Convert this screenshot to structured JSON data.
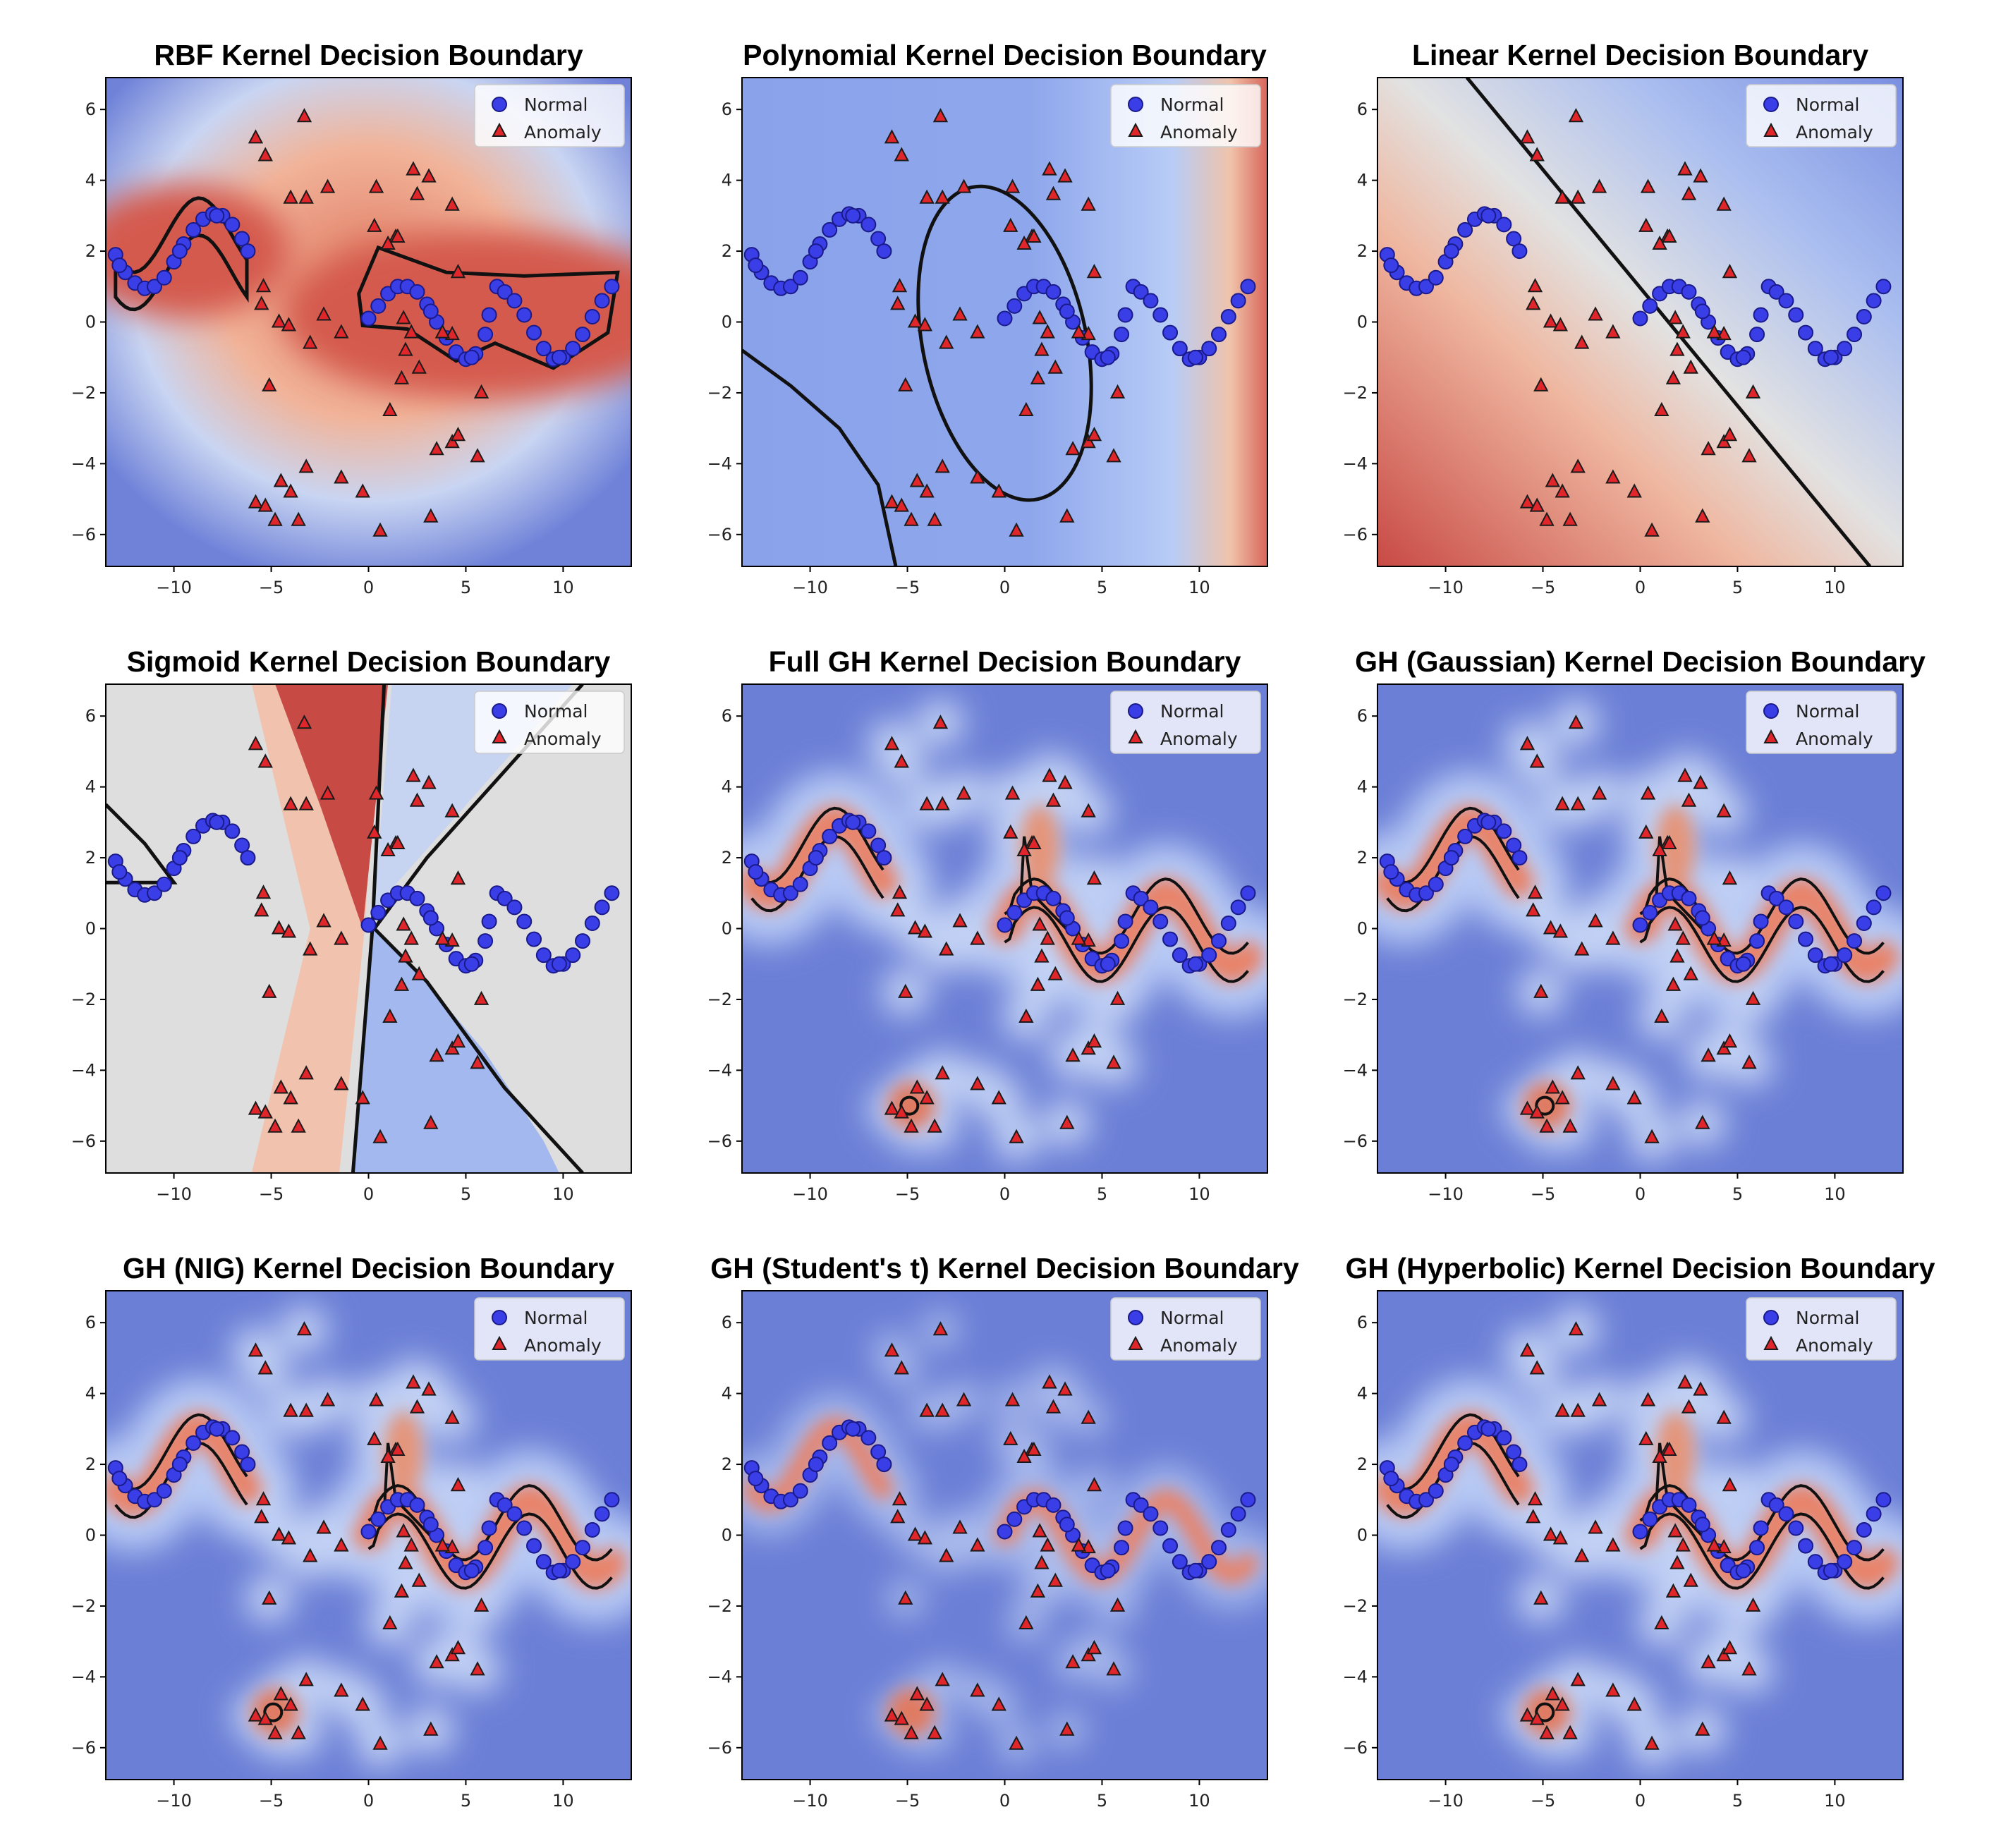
{
  "figure": {
    "legend_labels": {
      "normal": "Normal",
      "anomaly": "Anomaly"
    },
    "colors": {
      "normal_fill": "#3a3ee6",
      "normal_edge": "#1a1a8a",
      "anomaly_fill": "#e0262b",
      "anomaly_edge": "#1a1a1a",
      "boundary": "#111111",
      "score_low": "#5b6fd0",
      "score_mid": "#dcdcdc",
      "score_high": "#c3383a"
    }
  },
  "chart_data": [
    {
      "type": "scatter",
      "title": "RBF Kernel Decision Boundary",
      "xlim": [
        -13.5,
        13.5
      ],
      "ylim": [
        -6.9,
        6.9
      ],
      "xticks": [
        -10,
        -5,
        0,
        5,
        10
      ],
      "yticks": [
        -6,
        -4,
        -2,
        0,
        2,
        4,
        6
      ],
      "xtick_labels": [
        "−10",
        "−5",
        "0",
        "5",
        "10"
      ],
      "ytick_labels": [
        "−6",
        "−4",
        "−2",
        "0",
        "2",
        "4",
        "6"
      ],
      "legend": [
        "Normal",
        "Anomaly"
      ],
      "legend_position": "top-right",
      "kernel": "rbf"
    },
    {
      "type": "scatter",
      "title": "Polynomial Kernel Decision Boundary",
      "xlim": [
        -13.5,
        13.5
      ],
      "ylim": [
        -6.9,
        6.9
      ],
      "xticks": [
        -10,
        -5,
        0,
        5,
        10
      ],
      "yticks": [
        -6,
        -4,
        -2,
        0,
        2,
        4,
        6
      ],
      "xtick_labels": [
        "−10",
        "−5",
        "0",
        "5",
        "10"
      ],
      "ytick_labels": [
        "−6",
        "−4",
        "−2",
        "0",
        "2",
        "4",
        "6"
      ],
      "legend": [
        "Normal",
        "Anomaly"
      ],
      "legend_position": "top-right",
      "kernel": "poly"
    },
    {
      "type": "scatter",
      "title": "Linear Kernel Decision Boundary",
      "xlim": [
        -13.5,
        13.5
      ],
      "ylim": [
        -6.9,
        6.9
      ],
      "xticks": [
        -10,
        -5,
        0,
        5,
        10
      ],
      "yticks": [
        -6,
        -4,
        -2,
        0,
        2,
        4,
        6
      ],
      "xtick_labels": [
        "−10",
        "−5",
        "0",
        "5",
        "10"
      ],
      "ytick_labels": [
        "−6",
        "−4",
        "−2",
        "0",
        "2",
        "4",
        "6"
      ],
      "legend": [
        "Normal",
        "Anomaly"
      ],
      "legend_position": "top-right",
      "kernel": "linear"
    },
    {
      "type": "scatter",
      "title": "Sigmoid Kernel Decision Boundary",
      "xlim": [
        -13.5,
        13.5
      ],
      "ylim": [
        -6.9,
        6.9
      ],
      "xticks": [
        -10,
        -5,
        0,
        5,
        10
      ],
      "yticks": [
        -6,
        -4,
        -2,
        0,
        2,
        4,
        6
      ],
      "xtick_labels": [
        "−10",
        "−5",
        "0",
        "5",
        "10"
      ],
      "ytick_labels": [
        "−6",
        "−4",
        "−2",
        "0",
        "2",
        "4",
        "6"
      ],
      "legend": [
        "Normal",
        "Anomaly"
      ],
      "legend_position": "top-right",
      "kernel": "sigmoid"
    },
    {
      "type": "scatter",
      "title": "Full GH Kernel Decision Boundary",
      "xlim": [
        -13.5,
        13.5
      ],
      "ylim": [
        -6.9,
        6.9
      ],
      "xticks": [
        -10,
        -5,
        0,
        5,
        10
      ],
      "yticks": [
        -6,
        -4,
        -2,
        0,
        2,
        4,
        6
      ],
      "xtick_labels": [
        "−10",
        "−5",
        "0",
        "5",
        "10"
      ],
      "ytick_labels": [
        "−6",
        "−4",
        "−2",
        "0",
        "2",
        "4",
        "6"
      ],
      "legend": [
        "Normal",
        "Anomaly"
      ],
      "legend_position": "top-right",
      "kernel": "gh"
    },
    {
      "type": "scatter",
      "title": "GH (Gaussian) Kernel Decision Boundary",
      "xlim": [
        -13.5,
        13.5
      ],
      "ylim": [
        -6.9,
        6.9
      ],
      "xticks": [
        -10,
        -5,
        0,
        5,
        10
      ],
      "yticks": [
        -6,
        -4,
        -2,
        0,
        2,
        4,
        6
      ],
      "xtick_labels": [
        "−10",
        "−5",
        "0",
        "5",
        "10"
      ],
      "ytick_labels": [
        "−6",
        "−4",
        "−2",
        "0",
        "2",
        "4",
        "6"
      ],
      "legend": [
        "Normal",
        "Anomaly"
      ],
      "legend_position": "top-right",
      "kernel": "gh"
    },
    {
      "type": "scatter",
      "title": "GH (NIG) Kernel Decision Boundary",
      "xlim": [
        -13.5,
        13.5
      ],
      "ylim": [
        -6.9,
        6.9
      ],
      "xticks": [
        -10,
        -5,
        0,
        5,
        10
      ],
      "yticks": [
        -6,
        -4,
        -2,
        0,
        2,
        4,
        6
      ],
      "xtick_labels": [
        "−10",
        "−5",
        "0",
        "5",
        "10"
      ],
      "ytick_labels": [
        "−6",
        "−4",
        "−2",
        "0",
        "2",
        "4",
        "6"
      ],
      "legend": [
        "Normal",
        "Anomaly"
      ],
      "legend_position": "top-right",
      "kernel": "gh"
    },
    {
      "type": "scatter",
      "title": "GH (Student's t) Kernel Decision Boundary",
      "xlim": [
        -13.5,
        13.5
      ],
      "ylim": [
        -6.9,
        6.9
      ],
      "xticks": [
        -10,
        -5,
        0,
        5,
        10
      ],
      "yticks": [
        -6,
        -4,
        -2,
        0,
        2,
        4,
        6
      ],
      "xtick_labels": [
        "−10",
        "−5",
        "0",
        "5",
        "10"
      ],
      "ytick_labels": [
        "−6",
        "−4",
        "−2",
        "0",
        "2",
        "4",
        "6"
      ],
      "legend": [
        "Normal",
        "Anomaly"
      ],
      "legend_position": "top-right",
      "kernel": "gh_t"
    },
    {
      "type": "scatter",
      "title": "GH (Hyperbolic) Kernel Decision Boundary",
      "xlim": [
        -13.5,
        13.5
      ],
      "ylim": [
        -6.9,
        6.9
      ],
      "xticks": [
        -10,
        -5,
        0,
        5,
        10
      ],
      "yticks": [
        -6,
        -4,
        -2,
        0,
        2,
        4,
        6
      ],
      "xtick_labels": [
        "−10",
        "−5",
        "0",
        "5",
        "10"
      ],
      "ytick_labels": [
        "−6",
        "−4",
        "−2",
        "0",
        "2",
        "4",
        "6"
      ],
      "legend": [
        "Normal",
        "Anomaly"
      ],
      "legend_position": "top-right",
      "kernel": "gh"
    }
  ],
  "normal_points": [
    [
      -13.0,
      1.9
    ],
    [
      -12.5,
      1.4
    ],
    [
      -12.0,
      1.1
    ],
    [
      -11.5,
      0.95
    ],
    [
      -11.0,
      1.0
    ],
    [
      -10.5,
      1.25
    ],
    [
      -10.0,
      1.7
    ],
    [
      -9.5,
      2.2
    ],
    [
      -9.0,
      2.6
    ],
    [
      -8.5,
      2.9
    ],
    [
      -8.0,
      3.05
    ],
    [
      -7.5,
      3.0
    ],
    [
      -7.0,
      2.75
    ],
    [
      -6.5,
      2.35
    ],
    [
      -6.2,
      2.0
    ],
    [
      -12.8,
      1.6
    ],
    [
      -9.7,
      2.0
    ],
    [
      -7.8,
      3.0
    ],
    [
      0.0,
      0.1
    ],
    [
      0.5,
      0.45
    ],
    [
      1.0,
      0.8
    ],
    [
      1.5,
      1.0
    ],
    [
      2.0,
      1.0
    ],
    [
      2.5,
      0.85
    ],
    [
      3.0,
      0.5
    ],
    [
      3.5,
      0.0
    ],
    [
      4.0,
      -0.45
    ],
    [
      4.5,
      -0.85
    ],
    [
      5.0,
      -1.05
    ],
    [
      5.5,
      -0.9
    ],
    [
      6.0,
      -0.35
    ],
    [
      6.2,
      0.2
    ],
    [
      6.6,
      1.0
    ],
    [
      7.0,
      0.85
    ],
    [
      7.5,
      0.6
    ],
    [
      8.0,
      0.2
    ],
    [
      8.5,
      -0.3
    ],
    [
      9.0,
      -0.75
    ],
    [
      9.5,
      -1.05
    ],
    [
      10.0,
      -1.0
    ],
    [
      10.5,
      -0.75
    ],
    [
      11.0,
      -0.35
    ],
    [
      11.5,
      0.15
    ],
    [
      12.0,
      0.6
    ],
    [
      12.5,
      1.0
    ],
    [
      3.2,
      0.3
    ],
    [
      5.3,
      -1.0
    ],
    [
      9.8,
      -1.0
    ]
  ],
  "anomaly_points": [
    [
      -5.8,
      5.2
    ],
    [
      -5.3,
      4.7
    ],
    [
      -3.3,
      5.8
    ],
    [
      -4.0,
      3.5
    ],
    [
      -3.2,
      3.5
    ],
    [
      -2.1,
      3.8
    ],
    [
      -5.4,
      1.0
    ],
    [
      -5.5,
      0.5
    ],
    [
      -4.6,
      0.0
    ],
    [
      -4.1,
      -0.1
    ],
    [
      -2.3,
      0.2
    ],
    [
      -3.0,
      -0.6
    ],
    [
      -1.4,
      -0.3
    ],
    [
      -5.1,
      -1.8
    ],
    [
      -4.5,
      -4.5
    ],
    [
      -4.0,
      -4.8
    ],
    [
      -5.8,
      -5.1
    ],
    [
      -5.3,
      -5.2
    ],
    [
      -4.8,
      -5.6
    ],
    [
      -3.6,
      -5.6
    ],
    [
      -3.2,
      -4.1
    ],
    [
      -1.4,
      -4.4
    ],
    [
      -0.3,
      -4.8
    ],
    [
      0.6,
      -5.9
    ],
    [
      0.4,
      3.8
    ],
    [
      1.4,
      2.4
    ],
    [
      2.3,
      4.3
    ],
    [
      2.5,
      3.6
    ],
    [
      3.1,
      4.1
    ],
    [
      4.3,
      3.3
    ],
    [
      1.0,
      2.2
    ],
    [
      0.3,
      2.7
    ],
    [
      1.5,
      2.4
    ],
    [
      4.6,
      1.4
    ],
    [
      1.8,
      0.1
    ],
    [
      2.2,
      -0.3
    ],
    [
      1.9,
      -0.8
    ],
    [
      1.7,
      -1.6
    ],
    [
      1.1,
      -2.5
    ],
    [
      3.5,
      -3.6
    ],
    [
      4.3,
      -3.4
    ],
    [
      4.6,
      -3.2
    ],
    [
      5.6,
      -3.8
    ],
    [
      5.8,
      -2.0
    ],
    [
      3.2,
      -5.5
    ],
    [
      4.3,
      -0.35
    ],
    [
      3.8,
      -0.3
    ],
    [
      2.6,
      -1.3
    ]
  ]
}
